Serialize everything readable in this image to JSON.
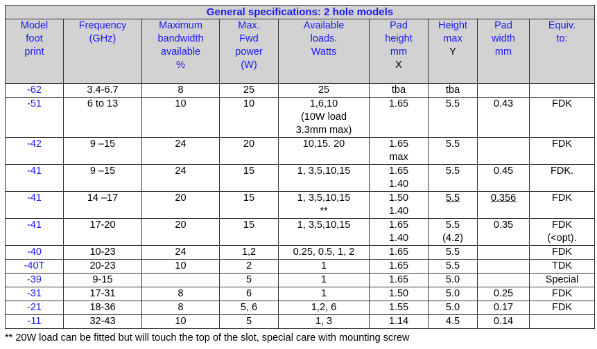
{
  "title": "General specifications: 2 hole models",
  "headers": [
    "Model\nfoot\nprint",
    "Frequency\n(GHz)",
    "Maximum\nbandwidth\navailable\n%",
    "Max.\nFwd\npower\n(W)",
    "Available\nloads.\nWatts",
    "Pad\nheight\nmm",
    "Height\nmax",
    "Pad\nwidth\nmm",
    "Equiv.\nto:"
  ],
  "header_suffixes": [
    "",
    "",
    "",
    "",
    "",
    "X",
    "Y",
    "",
    ""
  ],
  "rows": [
    [
      "-62",
      "3.4-6.7",
      "8",
      "25",
      "25",
      "tba",
      "tba",
      "",
      ""
    ],
    [
      "-51",
      "6 to 13",
      "10",
      "10",
      "1,6,10\n(10W load\n3.3mm max)",
      "1.65",
      "5.5",
      "0.43",
      "FDK"
    ],
    [
      "-42",
      "9 –15",
      "24",
      "20",
      "10,15. 20",
      "1.65\nmax",
      "5.5",
      "",
      "FDK"
    ],
    [
      "-41",
      "9 –15",
      "24",
      "15",
      "1, 3,5,10,15",
      "1.65\n1.40",
      "5.5",
      "0.45",
      "FDK."
    ],
    [
      "-41",
      "14 –17",
      "20",
      "15",
      "1, 3,5,10,15\n**",
      "1.50\n1.40",
      "5.5",
      "0.356",
      "FDK"
    ],
    [
      "-41",
      "17-20",
      "20",
      "15",
      "1, 3,5,10,15",
      "1.65\n1.40",
      "5.5\n(4.2)",
      "0.35",
      "FDK\n(<opt)."
    ],
    [
      "-40",
      "10-23",
      "24",
      "1,2",
      "0.25, 0.5, 1, 2",
      "1.65",
      "5.5",
      "",
      "FDK"
    ],
    [
      "-40T",
      "20-23",
      "10",
      "2",
      "1",
      "1.65",
      "5.5",
      "",
      "TDK"
    ],
    [
      "-39",
      "9-15",
      "",
      "5",
      "1",
      "1.65",
      "5.0",
      "",
      "Special"
    ],
    [
      "-31",
      "17-31",
      "8",
      "6",
      "1",
      "1.50",
      "5.0",
      "0.25",
      "FDK"
    ],
    [
      "-21",
      "18-36",
      "8",
      "5, 6",
      "1,2, 6",
      "1.55",
      "5.0",
      "0.17",
      "FDK"
    ],
    [
      "-11",
      "32-43",
      "10",
      "5",
      "1, 3",
      "1.14",
      "4.5",
      "0.14",
      ""
    ]
  ],
  "underlined_cells": [
    [
      4,
      6
    ],
    [
      4,
      7
    ]
  ],
  "footnote": "** 20W load can be fitted but will touch the top of the slot, special care with mounting screw",
  "colors": {
    "header_text": "#1a1aee",
    "header_bg": "#d2d2d2"
  }
}
